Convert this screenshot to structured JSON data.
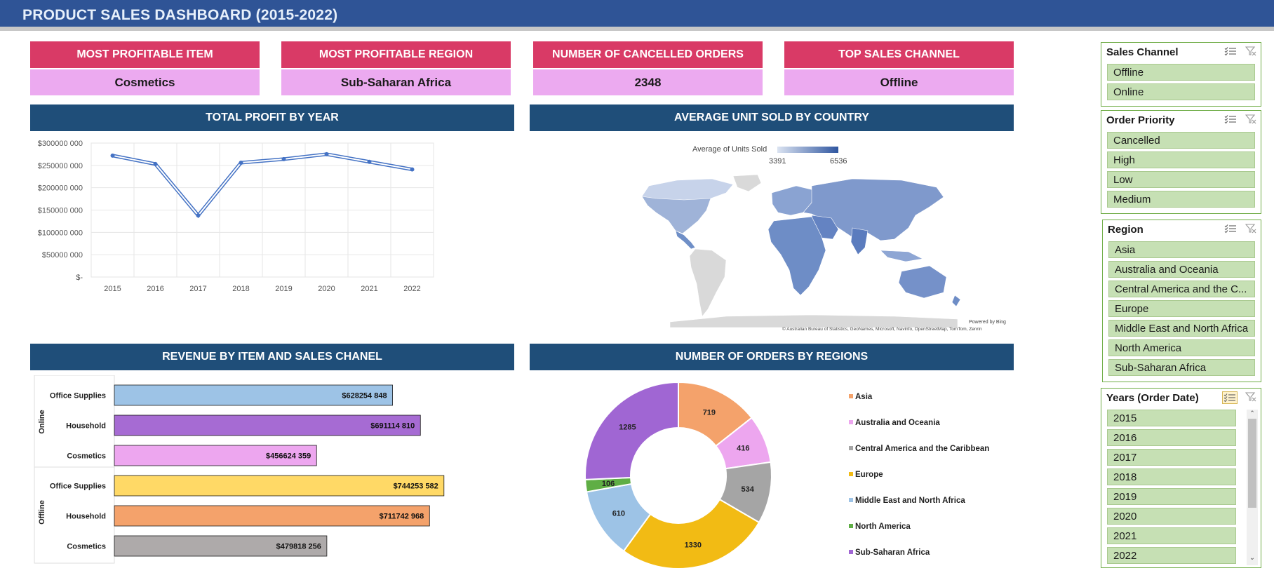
{
  "header": {
    "title": "PRODUCT SALES DASHBOARD (2015-2022)"
  },
  "kpis": [
    {
      "label": "MOST PROFITABLE ITEM",
      "value": "Cosmetics"
    },
    {
      "label": "MOST PROFITABLE REGION",
      "value": "Sub-Saharan Africa"
    },
    {
      "label": "NUMBER OF CANCELLED ORDERS",
      "value": "2348"
    },
    {
      "label": "TOP SALES CHANNEL",
      "value": "Offline"
    }
  ],
  "panels": {
    "profit": "TOTAL PROFIT BY YEAR",
    "map": "AVERAGE UNIT SOLD BY COUNTRY",
    "revenue": "REVENUE BY ITEM AND SALES CHANEL",
    "orders": "NUMBER OF ORDERS BY REGIONS"
  },
  "map": {
    "legend_title": "Average of Units Sold",
    "min_label": "3391",
    "max_label": "6536",
    "powered": "Powered by Bing",
    "credits": "© Australian Bureau of Statistics, GeoNames, Microsoft, Navinfo, OpenStreetMap, TomTom, Zenrin",
    "colors": {
      "low": "#dbe3f1",
      "high": "#2f56a0",
      "nodata": "#d9d9d9"
    }
  },
  "chart_data": [
    {
      "type": "line",
      "x": [
        "2015",
        "2016",
        "2017",
        "2018",
        "2019",
        "2020",
        "2021",
        "2022"
      ],
      "series": [
        {
          "values": [
            272000000,
            253000000,
            138000000,
            256000000,
            264000000,
            275000000,
            258000000,
            241000000
          ],
          "color": "#4472c4"
        }
      ],
      "ylim": [
        0,
        300000000
      ],
      "yticks": [
        "$-",
        "$50000 000",
        "$100000 000",
        "$150000 000",
        "$200000 000",
        "$250000 000",
        "$300000 000"
      ],
      "grid": true
    },
    {
      "type": "bar",
      "orientation": "horizontal",
      "groups": [
        {
          "name": "Online",
          "categories": [
            "Office Supplies",
            "Household",
            "Cosmetics"
          ],
          "values": [
            628254848,
            691114810,
            456624359
          ],
          "labels": [
            "$628254 848",
            "$691114 810",
            "$456624 359"
          ],
          "colors": [
            "#9dc3e6",
            "#a66bd3",
            "#eda6ef"
          ]
        },
        {
          "name": "Offline",
          "categories": [
            "Office Supplies",
            "Household",
            "Cosmetics"
          ],
          "values": [
            744253582,
            711742968,
            479818256
          ],
          "labels": [
            "$744253 582",
            "$711742 968",
            "$479818 256"
          ],
          "colors": [
            "#ffd966",
            "#f4a26b",
            "#aeaaaa"
          ]
        }
      ]
    },
    {
      "type": "pie",
      "donut": true,
      "categories": [
        "Asia",
        "Australia and Oceania",
        "Central America and the Caribbean",
        "Europe",
        "Middle East and North Africa",
        "North America",
        "Sub-Saharan Africa"
      ],
      "values": [
        719,
        416,
        534,
        1330,
        610,
        106,
        1285
      ],
      "colors": [
        "#f4a26b",
        "#eda6ef",
        "#a5a5a5",
        "#f2bb14",
        "#9dc3e6",
        "#5fae45",
        "#a066d3"
      ]
    }
  ],
  "slicers": [
    {
      "title": "Sales Channel",
      "items": [
        "Offline",
        "Online"
      ]
    },
    {
      "title": "Order Priority",
      "items": [
        "Cancelled",
        "High",
        "Low",
        "Medium"
      ]
    },
    {
      "title": "Region",
      "items": [
        "Asia",
        "Australia and Oceania",
        "Central America and the C...",
        "Europe",
        "Middle East and North Africa",
        "North America",
        "Sub-Saharan Africa"
      ]
    },
    {
      "title": "Years (Order Date)",
      "items": [
        "2015",
        "2016",
        "2017",
        "2018",
        "2019",
        "2020",
        "2021",
        "2022"
      ]
    }
  ],
  "icons": {
    "multiselect": "multi-select-icon",
    "clear": "clear-filter-icon",
    "scroll_up": "scroll-up-icon",
    "scroll_down": "scroll-down-icon"
  }
}
